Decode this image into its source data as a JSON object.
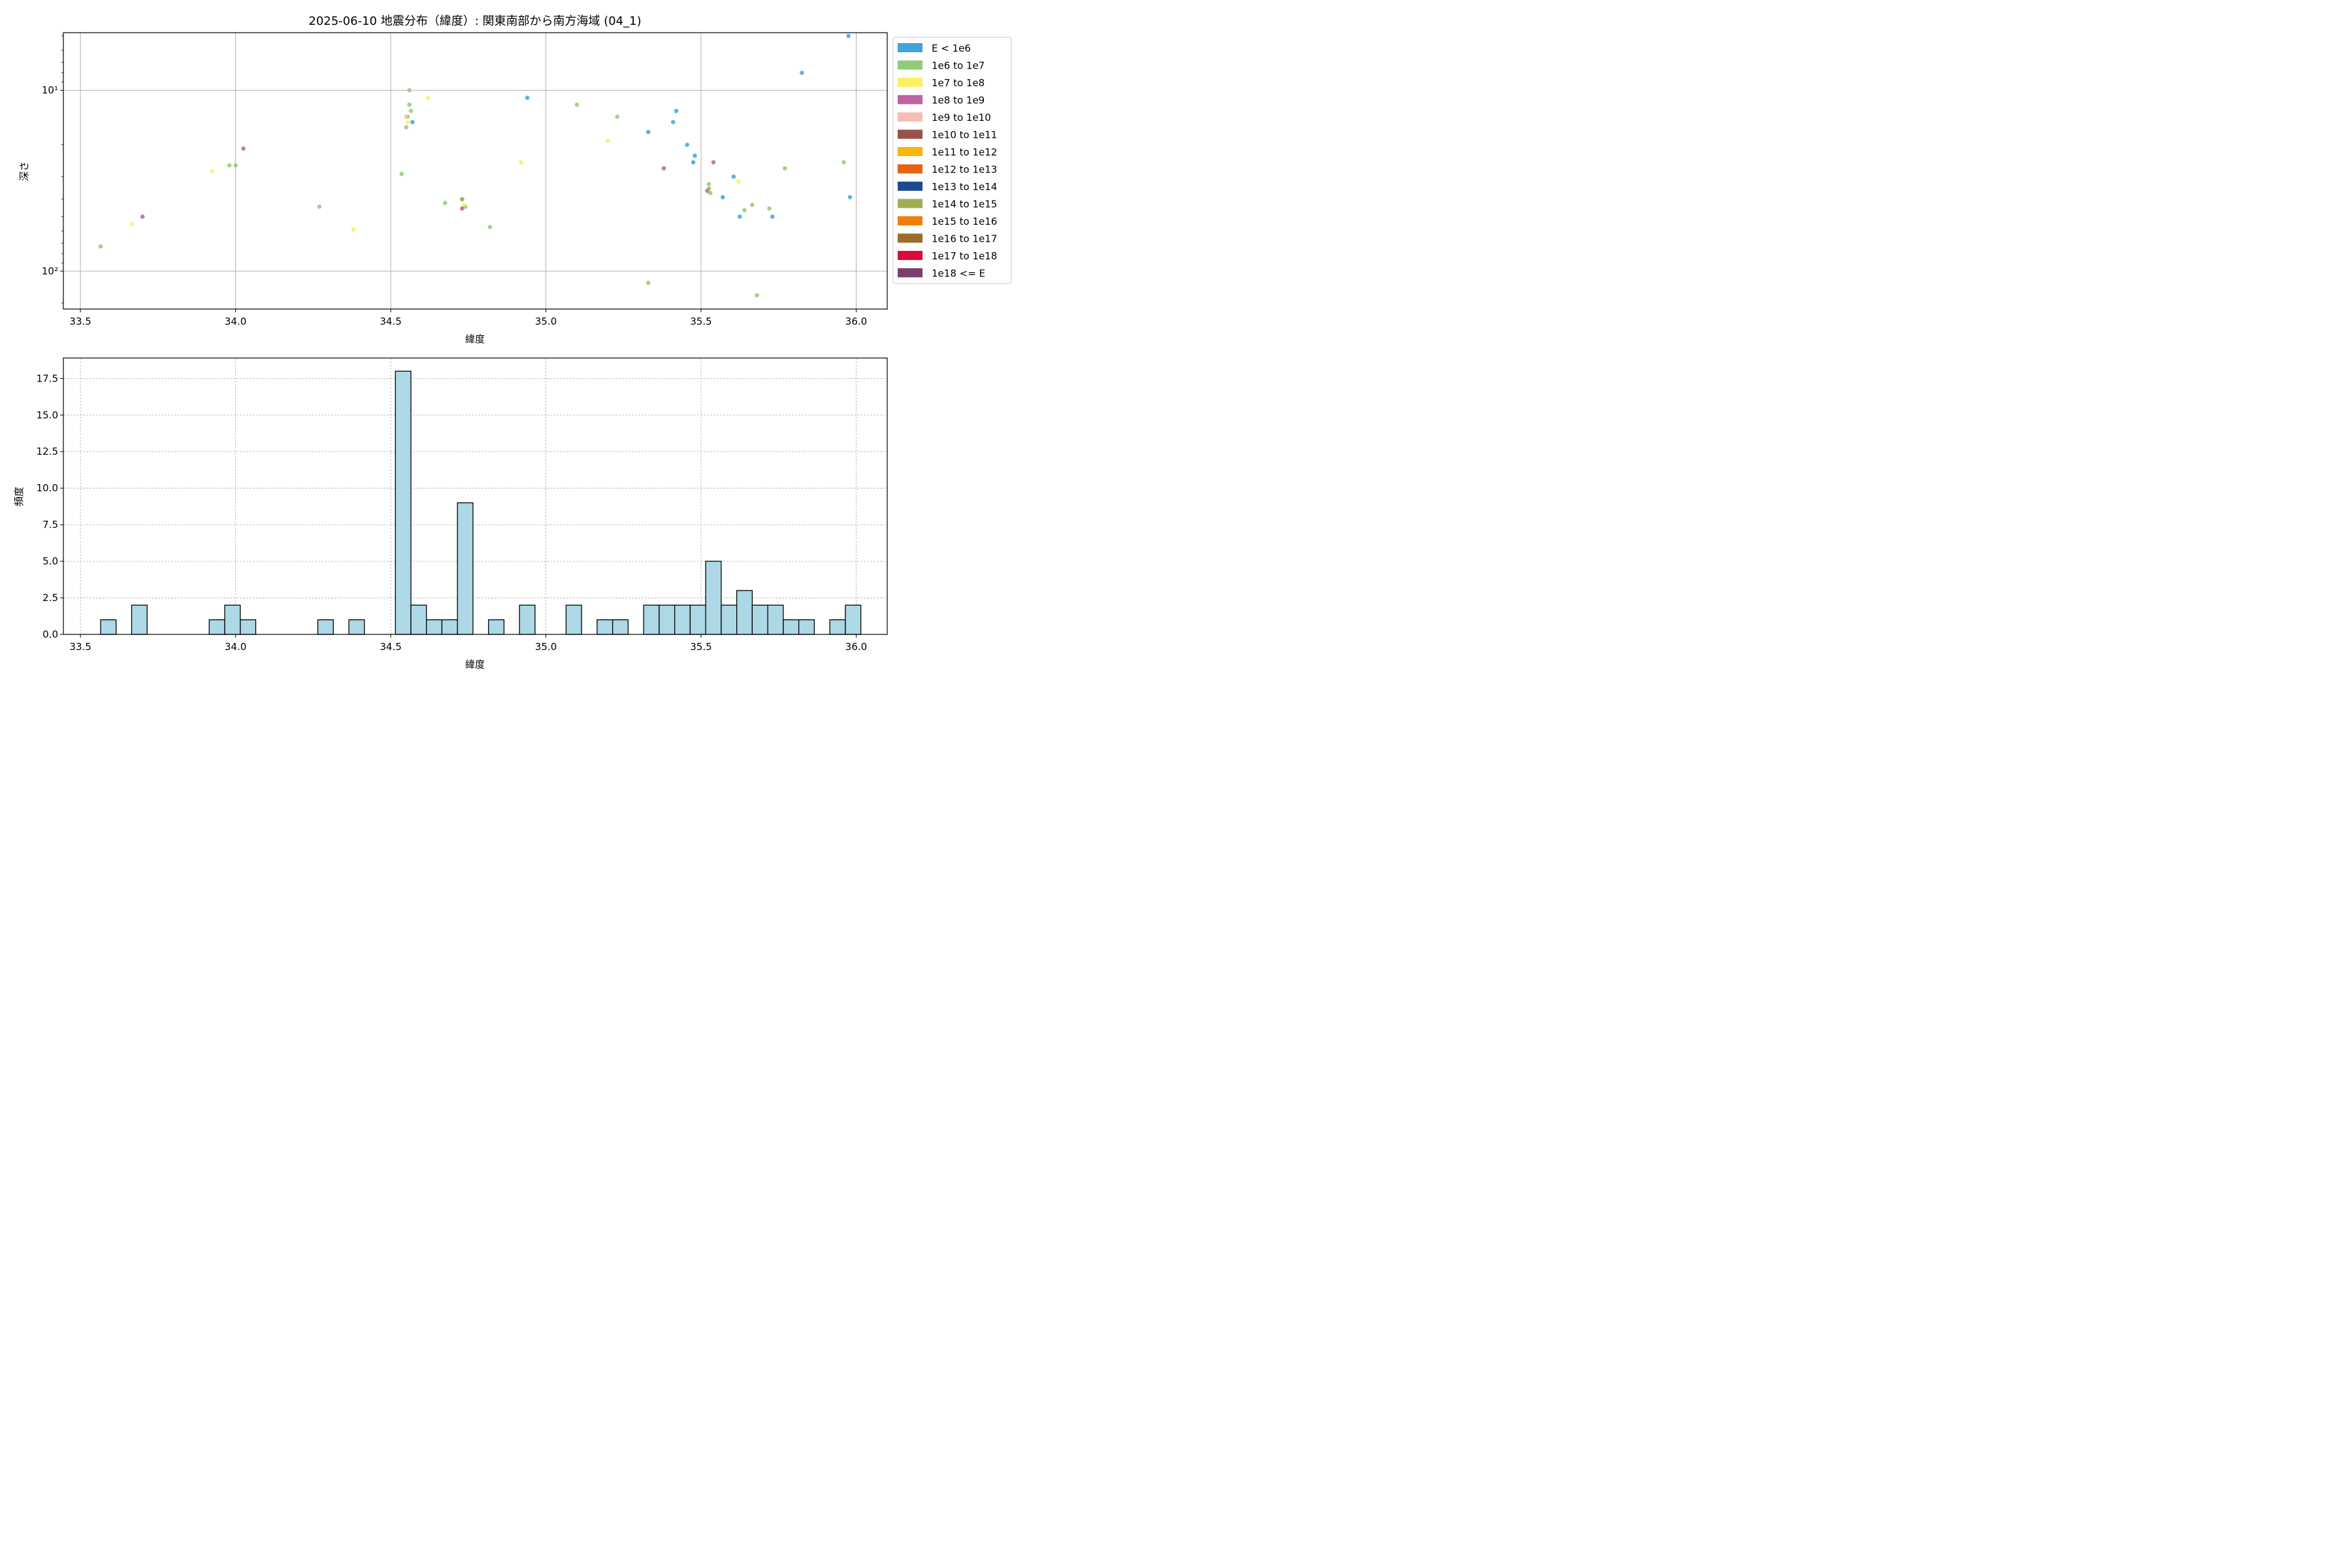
{
  "title": "2025-06-10 地震分布（緯度）: 関東南部から南方海域 (04_1)",
  "legend": [
    {
      "label": "E < 1e6",
      "color": "#3fa4dc"
    },
    {
      "label": "1e6 to 1e7",
      "color": "#90cb77"
    },
    {
      "label": "1e7 to 1e8",
      "color": "#fdef63"
    },
    {
      "label": "1e8 to 1e9",
      "color": "#bb64a3"
    },
    {
      "label": "1e9 to 1e10",
      "color": "#f5bdb5"
    },
    {
      "label": "1e10 to 1e11",
      "color": "#9b4f4b"
    },
    {
      "label": "1e11 to 1e12",
      "color": "#f5b60e"
    },
    {
      "label": "1e12 to 1e13",
      "color": "#e8620f"
    },
    {
      "label": "1e13 to 1e14",
      "color": "#1c4a93"
    },
    {
      "label": "1e14 to 1e15",
      "color": "#9daf53"
    },
    {
      "label": "1e15 to 1e16",
      "color": "#f17e0d"
    },
    {
      "label": "1e16 to 1e17",
      "color": "#9a6e2a"
    },
    {
      "label": "1e17 to 1e18",
      "color": "#dc0a3c"
    },
    {
      "label": "1e18 <= E",
      "color": "#7a3f6f"
    }
  ],
  "chart_data": [
    {
      "type": "scatter",
      "xlabel": "緯度",
      "ylabel": "深さ",
      "xlim": [
        33.445,
        36.1
      ],
      "ylim": [
        162,
        4.8
      ],
      "yscale": "log",
      "y_inverted": true,
      "grid": true,
      "legend_position": "outside-right",
      "xticks": [
        "33.5",
        "34.0",
        "34.5",
        "35.0",
        "35.5",
        "36.0"
      ],
      "yticks": [
        "10¹",
        "10²"
      ],
      "series": [
        {
          "name": "E < 1e6",
          "points": [
            [
              34.57,
              15
            ],
            [
              34.94,
              11
            ],
            [
              35.33,
              17
            ],
            [
              35.41,
              15
            ],
            [
              35.42,
              13
            ],
            [
              35.455,
              20
            ],
            [
              35.475,
              25
            ],
            [
              35.48,
              23
            ],
            [
              35.57,
              39
            ],
            [
              35.605,
              30
            ],
            [
              35.625,
              50
            ],
            [
              35.73,
              50
            ],
            [
              35.825,
              8
            ],
            [
              35.975,
              5
            ],
            [
              35.98,
              39
            ]
          ]
        },
        {
          "name": "1e6 to 1e7",
          "points": [
            [
              33.565,
              73
            ],
            [
              33.98,
              26
            ],
            [
              34.0,
              26
            ],
            [
              34.27,
              44
            ],
            [
              34.535,
              29
            ],
            [
              34.55,
              16
            ],
            [
              34.555,
              14
            ],
            [
              34.56,
              10
            ],
            [
              34.56,
              12
            ],
            [
              34.565,
              13
            ],
            [
              34.675,
              42
            ],
            [
              34.73,
              40
            ],
            [
              34.74,
              44
            ],
            [
              34.82,
              57
            ],
            [
              35.1,
              12
            ],
            [
              35.23,
              14
            ],
            [
              35.33,
              116
            ],
            [
              35.525,
              33
            ],
            [
              35.53,
              37
            ],
            [
              35.64,
              46
            ],
            [
              35.665,
              43
            ],
            [
              35.68,
              136
            ],
            [
              35.72,
              45
            ],
            [
              35.77,
              27
            ],
            [
              35.96,
              25
            ]
          ]
        },
        {
          "name": "1e7 to 1e8",
          "points": [
            [
              33.665,
              55
            ],
            [
              33.925,
              28
            ],
            [
              34.38,
              59
            ],
            [
              34.555,
              15
            ],
            [
              34.62,
              11
            ],
            [
              34.735,
              43
            ],
            [
              34.92,
              25
            ],
            [
              35.2,
              19
            ],
            [
              35.62,
              32
            ]
          ]
        },
        {
          "name": "1e8 to 1e9",
          "points": [
            [
              33.7,
              50
            ],
            [
              34.025,
              21
            ],
            [
              34.73,
              45
            ],
            [
              35.38,
              27
            ],
            [
              35.52,
              36
            ],
            [
              35.54,
              25
            ]
          ]
        },
        {
          "name": "1e9 to 1e10",
          "points": [
            [
              34.55,
              14
            ]
          ]
        },
        {
          "name": "1e14 to 1e15",
          "points": [
            [
              34.73,
              40
            ],
            [
              35.525,
              35
            ]
          ]
        }
      ]
    },
    {
      "type": "bar",
      "xlabel": "緯度",
      "ylabel": "頻度",
      "xlim": [
        33.445,
        36.1
      ],
      "ylim": [
        0,
        18.9
      ],
      "grid": true,
      "bar_color": "#add8e6",
      "xticks": [
        "33.5",
        "34.0",
        "34.5",
        "35.0",
        "35.5",
        "36.0"
      ],
      "yticks": [
        "0.0",
        "2.5",
        "5.0",
        "7.5",
        "10.0",
        "12.5",
        "15.0",
        "17.5"
      ],
      "bins": [
        {
          "x0": 33.565,
          "x1": 33.615,
          "count": 1
        },
        {
          "x0": 33.665,
          "x1": 33.715,
          "count": 2
        },
        {
          "x0": 33.915,
          "x1": 33.965,
          "count": 1
        },
        {
          "x0": 33.965,
          "x1": 34.015,
          "count": 2
        },
        {
          "x0": 34.015,
          "x1": 34.065,
          "count": 1
        },
        {
          "x0": 34.265,
          "x1": 34.315,
          "count": 1
        },
        {
          "x0": 34.365,
          "x1": 34.415,
          "count": 1
        },
        {
          "x0": 34.515,
          "x1": 34.565,
          "count": 18
        },
        {
          "x0": 34.565,
          "x1": 34.615,
          "count": 2
        },
        {
          "x0": 34.615,
          "x1": 34.665,
          "count": 1
        },
        {
          "x0": 34.665,
          "x1": 34.715,
          "count": 1
        },
        {
          "x0": 34.715,
          "x1": 34.765,
          "count": 9
        },
        {
          "x0": 34.815,
          "x1": 34.865,
          "count": 1
        },
        {
          "x0": 34.915,
          "x1": 34.965,
          "count": 2
        },
        {
          "x0": 35.065,
          "x1": 35.115,
          "count": 2
        },
        {
          "x0": 35.165,
          "x1": 35.215,
          "count": 1
        },
        {
          "x0": 35.215,
          "x1": 35.265,
          "count": 1
        },
        {
          "x0": 35.315,
          "x1": 35.365,
          "count": 2
        },
        {
          "x0": 35.365,
          "x1": 35.415,
          "count": 2
        },
        {
          "x0": 35.415,
          "x1": 35.465,
          "count": 2
        },
        {
          "x0": 35.465,
          "x1": 35.515,
          "count": 2
        },
        {
          "x0": 35.515,
          "x1": 35.565,
          "count": 5
        },
        {
          "x0": 35.565,
          "x1": 35.615,
          "count": 2
        },
        {
          "x0": 35.615,
          "x1": 35.665,
          "count": 3
        },
        {
          "x0": 35.665,
          "x1": 35.715,
          "count": 2
        },
        {
          "x0": 35.715,
          "x1": 35.765,
          "count": 2
        },
        {
          "x0": 35.765,
          "x1": 35.815,
          "count": 1
        },
        {
          "x0": 35.815,
          "x1": 35.865,
          "count": 1
        },
        {
          "x0": 35.915,
          "x1": 35.965,
          "count": 1
        },
        {
          "x0": 35.965,
          "x1": 36.015,
          "count": 2
        }
      ]
    }
  ]
}
